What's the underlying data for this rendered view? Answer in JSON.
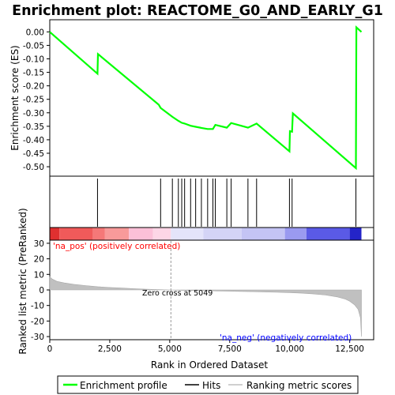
{
  "chart_data": {
    "type": "line",
    "title": "Enrichment plot: REACTOME_G0_AND_EARLY_G1",
    "top_panel": {
      "ylabel": "Enrichment score (ES)",
      "ylim": [
        -0.535,
        0.045
      ],
      "yticks": [
        0.0,
        -0.05,
        -0.1,
        -0.15,
        -0.2,
        -0.25,
        -0.3,
        -0.35,
        -0.4,
        -0.45,
        -0.5
      ],
      "ytick_labels": [
        "0.00",
        "-0.05",
        "-0.10",
        "-0.15",
        "-0.20",
        "-0.25",
        "-0.30",
        "-0.35",
        "-0.40",
        "-0.45",
        "-0.50"
      ],
      "line_color": "#00ff00",
      "series": [
        {
          "name": "Enrichment profile",
          "x": [
            0,
            1990,
            2010,
            4540,
            4620,
            5110,
            5360,
            5500,
            5620,
            5870,
            6080,
            6320,
            6580,
            6800,
            6900,
            7380,
            7560,
            8260,
            8620,
            9990,
            10010,
            10100,
            10130,
            12760,
            12780,
            12990
          ],
          "y": [
            0.0,
            -0.155,
            -0.082,
            -0.27,
            -0.282,
            -0.315,
            -0.33,
            -0.337,
            -0.34,
            -0.348,
            -0.352,
            -0.356,
            -0.36,
            -0.36,
            -0.345,
            -0.355,
            -0.338,
            -0.355,
            -0.34,
            -0.443,
            -0.368,
            -0.37,
            -0.302,
            -0.505,
            0.017,
            0.0
          ]
        }
      ]
    },
    "hits_panel": {
      "legend_label": "Hits",
      "positions": [
        1990,
        4620,
        5110,
        5360,
        5500,
        5620,
        5870,
        6080,
        6320,
        6580,
        6800,
        6900,
        7380,
        7560,
        8260,
        8620,
        9990,
        10100,
        12760
      ]
    },
    "ranking_bar": {
      "segments": [
        {
          "start": 0,
          "end": 400,
          "color": "#e03030"
        },
        {
          "start": 400,
          "end": 1800,
          "color": "#f05a5a"
        },
        {
          "start": 1800,
          "end": 2300,
          "color": "#f57878"
        },
        {
          "start": 2300,
          "end": 3300,
          "color": "#f89a9a"
        },
        {
          "start": 3300,
          "end": 4300,
          "color": "#fcc0d8"
        },
        {
          "start": 4300,
          "end": 5049,
          "color": "#fdd6e6"
        },
        {
          "start": 5049,
          "end": 6400,
          "color": "#e4e4fa"
        },
        {
          "start": 6400,
          "end": 8000,
          "color": "#d4d4f6"
        },
        {
          "start": 8000,
          "end": 9800,
          "color": "#c4c4f4"
        },
        {
          "start": 9800,
          "end": 10700,
          "color": "#9a9af0"
        },
        {
          "start": 10700,
          "end": 12500,
          "color": "#5a5ae6"
        },
        {
          "start": 12500,
          "end": 12990,
          "color": "#2424c8"
        }
      ]
    },
    "bottom_panel": {
      "ylabel": "Ranked list metric (PreRanked)",
      "xlabel": "Rank in Ordered Dataset",
      "ylim": [
        -32,
        32
      ],
      "yticks": [
        30,
        20,
        10,
        0,
        -10,
        -20,
        -30
      ],
      "ytick_labels": [
        "30",
        "20",
        "10",
        "0",
        "-10",
        "-20",
        "-30"
      ],
      "xlim": [
        0,
        13500
      ],
      "xticks": [
        0,
        2500,
        5000,
        7500,
        10000,
        12500
      ],
      "xtick_labels": [
        "0",
        "2,500",
        "5,000",
        "7,500",
        "10,000",
        "12,500"
      ],
      "fill_color": "#c0c0c0",
      "metric_curve": {
        "x": [
          0,
          100,
          300,
          600,
          1000,
          1500,
          2000,
          2500,
          3000,
          3500,
          4000,
          4500,
          5049,
          5500,
          6000,
          6500,
          7000,
          7500,
          8000,
          8500,
          9000,
          9500,
          10000,
          10500,
          11000,
          11500,
          12000,
          12300,
          12500,
          12700,
          12850,
          12950,
          12990
        ],
        "y": [
          8.5,
          7,
          5.5,
          4.5,
          3.6,
          2.8,
          2.1,
          1.6,
          1.2,
          0.8,
          0.5,
          0.25,
          0,
          -0.2,
          -0.35,
          -0.5,
          -0.65,
          -0.8,
          -0.95,
          -1.1,
          -1.3,
          -1.5,
          -1.75,
          -2.1,
          -2.6,
          -3.3,
          -4.5,
          -5.8,
          -7.2,
          -9.5,
          -12.5,
          -18,
          -30
        ]
      },
      "zero_cross_label": "Zero cross at 5049",
      "zero_cross": 5049,
      "pos_label": "'na_pos' (positively correlated)",
      "neg_label": "'na_neg' (negatively correlated)",
      "pos_color": "#ff0000",
      "neg_color": "#0000ff"
    },
    "legend": [
      {
        "label": "Enrichment profile",
        "color": "#00ff00"
      },
      {
        "label": "Hits",
        "color": "#000000"
      },
      {
        "label": "Ranking metric scores",
        "color": "#c0c0c0"
      }
    ]
  }
}
